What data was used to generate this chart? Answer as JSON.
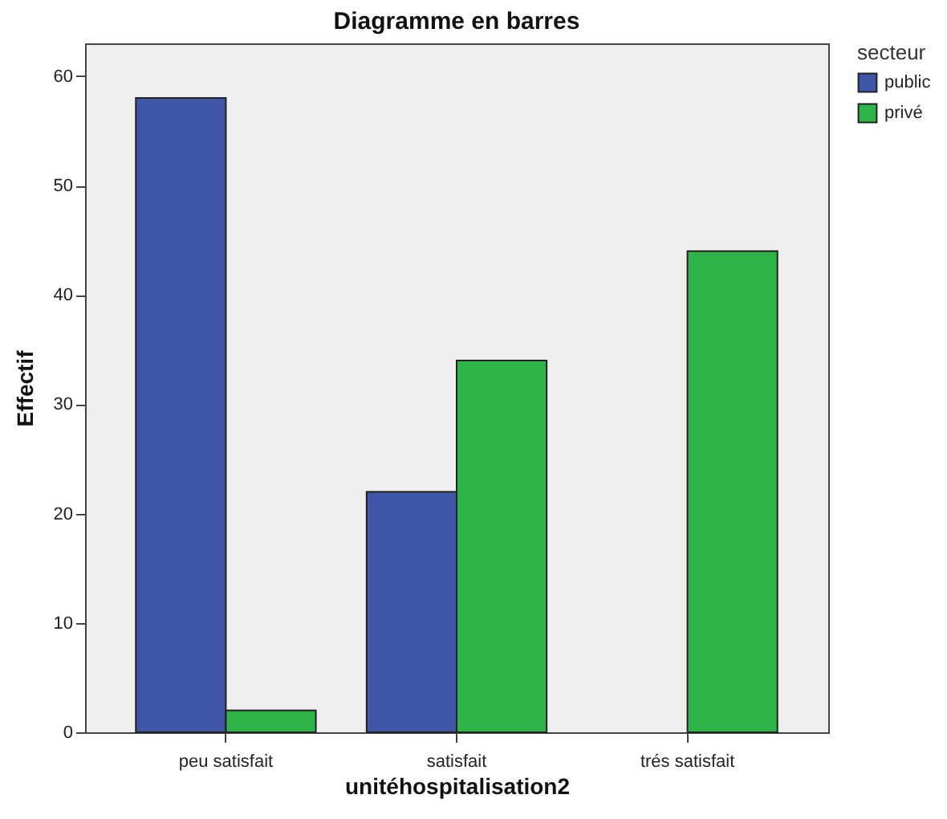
{
  "chart_data": {
    "type": "bar",
    "title": "Diagramme en barres",
    "xlabel": "unitéhospitalisation2",
    "ylabel": "Effectif",
    "legend_title": "secteur",
    "categories": [
      "peu satisfait",
      "satisfait",
      "trés satisfait"
    ],
    "series": [
      {
        "name": "public",
        "color": "#3f55a8",
        "values": [
          58,
          22,
          null
        ]
      },
      {
        "name": "privé",
        "color": "#2fb44a",
        "values": [
          2,
          34,
          44
        ]
      }
    ],
    "ylim": [
      0,
      63
    ],
    "yticks": [
      0,
      10,
      20,
      30,
      40,
      50,
      60
    ],
    "grid": false,
    "legend": "top right"
  }
}
